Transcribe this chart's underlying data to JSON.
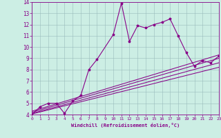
{
  "xlabel": "Windchill (Refroidissement éolien,°C)",
  "xlim": [
    0,
    23
  ],
  "ylim": [
    4,
    14
  ],
  "xticks": [
    0,
    1,
    2,
    3,
    4,
    5,
    6,
    7,
    8,
    9,
    10,
    11,
    12,
    13,
    14,
    15,
    16,
    17,
    18,
    19,
    20,
    21,
    22,
    23
  ],
  "yticks": [
    4,
    5,
    6,
    7,
    8,
    9,
    10,
    11,
    12,
    13,
    14
  ],
  "bg_color": "#cceee4",
  "line_color": "#880088",
  "marker": "*",
  "series_main": {
    "x": [
      0,
      1,
      2,
      3,
      4,
      5,
      6,
      7,
      8,
      10,
      11,
      12,
      13,
      14,
      15,
      16,
      17,
      18,
      19,
      20,
      21,
      22,
      23
    ],
    "y": [
      4.0,
      4.7,
      5.0,
      5.0,
      4.1,
      5.2,
      5.7,
      8.0,
      8.9,
      11.1,
      13.9,
      10.5,
      11.9,
      11.7,
      12.0,
      12.2,
      12.5,
      11.0,
      9.5,
      8.3,
      8.8,
      8.6,
      9.2
    ]
  },
  "linear_lines": [
    {
      "x": [
        0,
        23
      ],
      "y": [
        4.05,
        8.2
      ]
    },
    {
      "x": [
        0,
        23
      ],
      "y": [
        4.1,
        8.6
      ]
    },
    {
      "x": [
        0,
        23
      ],
      "y": [
        4.2,
        9.0
      ]
    },
    {
      "x": [
        0,
        23
      ],
      "y": [
        4.3,
        9.3
      ]
    }
  ]
}
